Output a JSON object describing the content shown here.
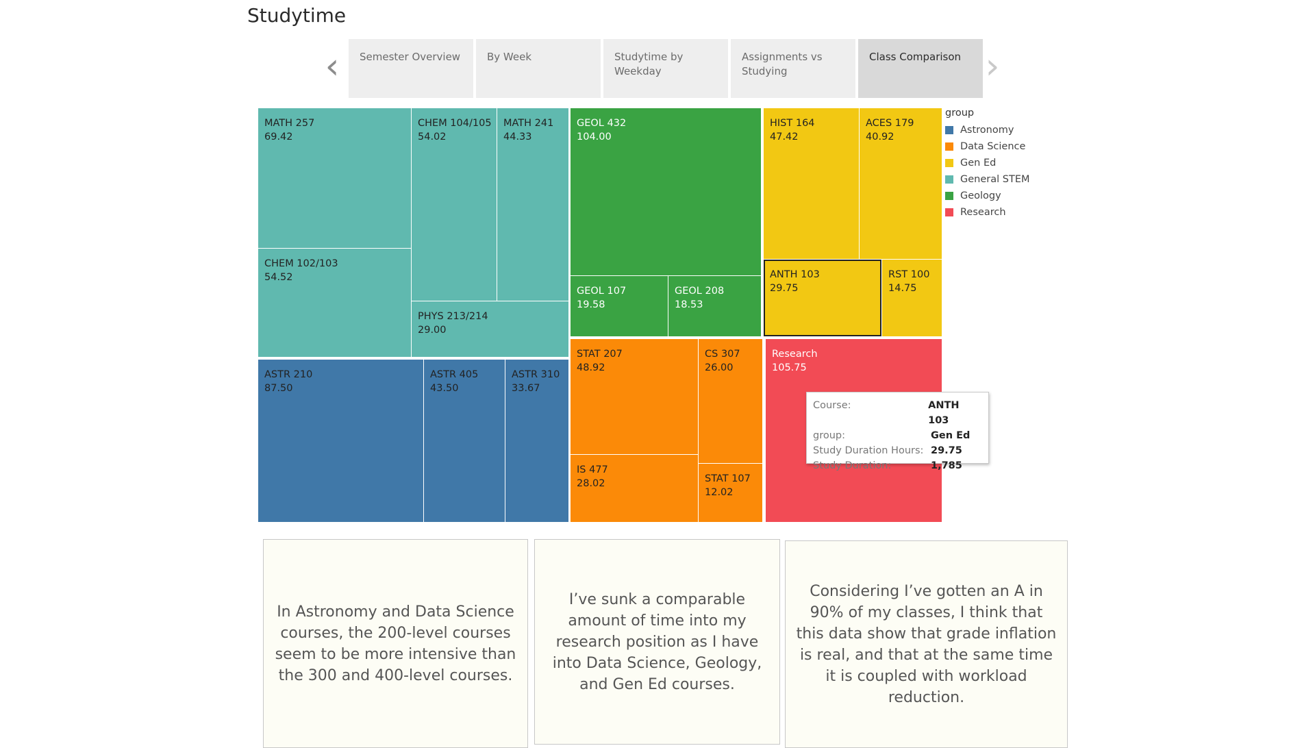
{
  "title": "Studytime",
  "nav": {
    "prev_icon": "chevron-left-icon",
    "next_icon": "chevron-right-icon",
    "prev_glyph": "‹",
    "next_glyph": "›",
    "tabs": [
      {
        "label": "Semester Overview",
        "active": false
      },
      {
        "label": "By Week",
        "active": false
      },
      {
        "label": "Studytime by Weekday",
        "active": false
      },
      {
        "label": "Assignments vs Studying",
        "active": false
      },
      {
        "label": "Class Comparison",
        "active": true
      }
    ]
  },
  "chart_data": {
    "type": "treemap",
    "groups": [
      {
        "name": "Astronomy",
        "color": "#4078a8"
      },
      {
        "name": "Data Science",
        "color": "#fb8a08"
      },
      {
        "name": "Gen Ed",
        "color": "#f2c813"
      },
      {
        "name": "General STEM",
        "color": "#60b9af"
      },
      {
        "name": "Geology",
        "color": "#3aa343"
      },
      {
        "name": "Research",
        "color": "#f24b55"
      }
    ],
    "items": [
      {
        "course": "MATH 257",
        "group": "General STEM",
        "value": "69.42"
      },
      {
        "course": "CHEM 104/105",
        "group": "General STEM",
        "value": "54.02"
      },
      {
        "course": "MATH 241",
        "group": "General STEM",
        "value": "44.33"
      },
      {
        "course": "CHEM 102/103",
        "group": "General STEM",
        "value": "54.52"
      },
      {
        "course": "PHYS 213/214",
        "group": "General STEM",
        "value": "29.00"
      },
      {
        "course": "ASTR 210",
        "group": "Astronomy",
        "value": "87.50"
      },
      {
        "course": "ASTR 405",
        "group": "Astronomy",
        "value": "43.50"
      },
      {
        "course": "ASTR 310",
        "group": "Astronomy",
        "value": "33.67"
      },
      {
        "course": "GEOL 432",
        "group": "Geology",
        "value": "104.00"
      },
      {
        "course": "GEOL 107",
        "group": "Geology",
        "value": "19.58"
      },
      {
        "course": "GEOL 208",
        "group": "Geology",
        "value": "18.53"
      },
      {
        "course": "STAT 207",
        "group": "Data Science",
        "value": "48.92"
      },
      {
        "course": "CS 307",
        "group": "Data Science",
        "value": "26.00"
      },
      {
        "course": "IS 477",
        "group": "Data Science",
        "value": "28.02"
      },
      {
        "course": "STAT 107",
        "group": "Data Science",
        "value": "12.02"
      },
      {
        "course": "HIST 164",
        "group": "Gen Ed",
        "value": "47.42"
      },
      {
        "course": "ACES 179",
        "group": "Gen Ed",
        "value": "40.92"
      },
      {
        "course": "ANTH 103",
        "group": "Gen Ed",
        "value": "29.75",
        "selected": true
      },
      {
        "course": "RST 100",
        "group": "Gen Ed",
        "value": "14.75"
      },
      {
        "course": "Research",
        "group": "Research",
        "value": "105.75"
      }
    ]
  },
  "legend": {
    "title": "group"
  },
  "tooltip": {
    "rows": [
      {
        "key": "Course:",
        "value": "ANTH 103"
      },
      {
        "key": "group:",
        "value": "Gen Ed"
      },
      {
        "key": "Study Duration Hours:",
        "value": "29.75"
      },
      {
        "key": "Study Duration:",
        "value": "1,785"
      }
    ]
  },
  "notes": [
    "In Astronomy and Data Science courses, the 200-level courses seem to be more intensive than the 300 and 400-level courses.",
    "I’ve sunk a comparable amount of time into my research position as I have into Data Science, Geology, and Gen Ed courses.",
    "Considering I’ve gotten an A in 90% of my classes, I think that this data show that grade inflation is real, and that at the same time it is coupled with workload reduction."
  ]
}
